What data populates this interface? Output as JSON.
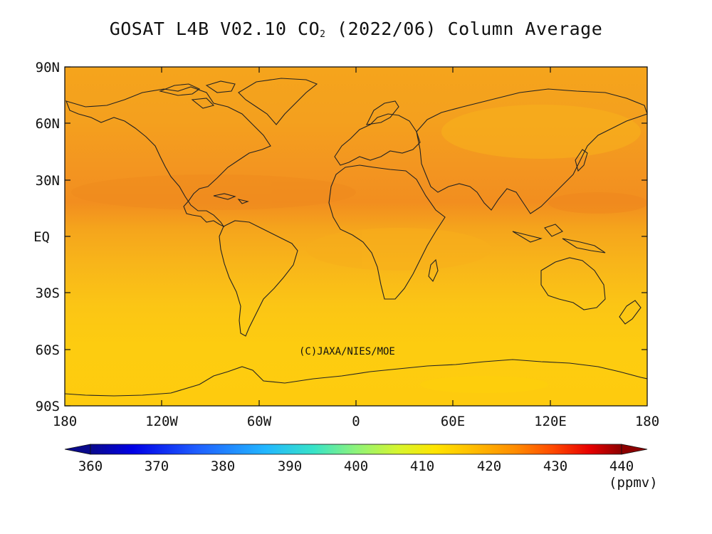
{
  "figure": {
    "title_main": "GOSAT L4B V02.10 CO",
    "title_sub": "2",
    "title_rest": " (2022/06) Column Average",
    "copyright": "(C)JAXA/NIES/MOE"
  },
  "map": {
    "projection": "equirectangular",
    "lat_ticks": [
      "90N",
      "60N",
      "30N",
      "EQ",
      "30S",
      "60S",
      "90S"
    ],
    "lon_ticks": [
      "180",
      "120W",
      "60W",
      "0",
      "60E",
      "120E",
      "180"
    ],
    "background_color": "#f3a81a"
  },
  "colorbar": {
    "ticks": [
      "360",
      "370",
      "380",
      "390",
      "400",
      "410",
      "420",
      "430",
      "440"
    ],
    "unit": "(ppmv)",
    "range": [
      360,
      440
    ],
    "colors": [
      "#0a0a8c",
      "#0000e6",
      "#1f5eff",
      "#22b7ff",
      "#37e3c8",
      "#8ef37a",
      "#d7f52e",
      "#ffe400",
      "#ffbd00",
      "#ff8c00",
      "#ff4a00",
      "#e60000",
      "#8c0000"
    ]
  },
  "chart_data": {
    "type": "heatmap",
    "title": "GOSAT L4B V02.10 CO2 (2022/06) Column Average",
    "variable": "CO2 column average",
    "unit": "ppmv",
    "value_range": [
      360,
      440
    ],
    "zonal_bands": [
      {
        "lat": "90N-60N",
        "value": 419
      },
      {
        "lat": "60N-30N",
        "value": 420
      },
      {
        "lat": "30N-10N",
        "value": 421
      },
      {
        "lat": "10N-10S",
        "value": 418
      },
      {
        "lat": "10S-30S",
        "value": 417
      },
      {
        "lat": "30S-90S",
        "value": 415
      }
    ]
  }
}
